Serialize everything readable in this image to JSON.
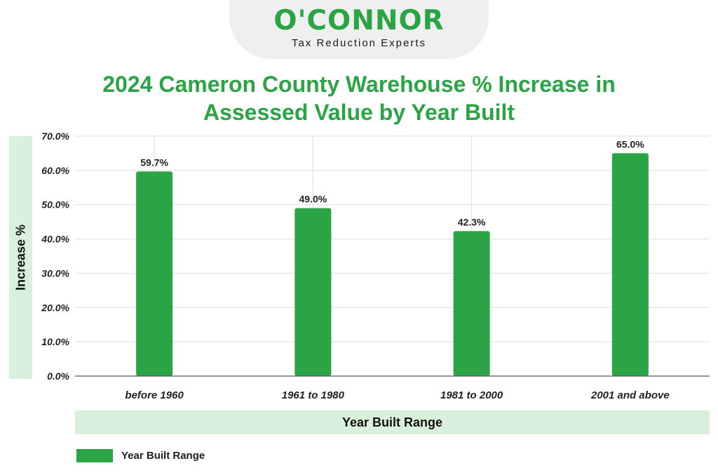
{
  "brand": {
    "name": "O'CONNOR",
    "tagline": "Tax Reduction Experts",
    "color": "#2aa444"
  },
  "colors": {
    "bar": "#2aa444",
    "band": "#d9f0dc",
    "grid": "#dddddd",
    "axis": "#555555"
  },
  "chart_data": {
    "type": "bar",
    "title": "2024 Cameron County Warehouse % Increase in Assessed Value by Year Built",
    "xlabel": "Year Built Range",
    "ylabel": "Increase %",
    "categories": [
      "before 1960",
      "1961 to 1980",
      "1981 to 2000",
      "2001 and above"
    ],
    "series": [
      {
        "name": "Year Built Range",
        "values": [
          59.7,
          49.0,
          42.3,
          65.0
        ]
      }
    ],
    "data_labels": [
      "59.7%",
      "49.0%",
      "42.3%",
      "65.0%"
    ],
    "ylim": [
      0,
      70
    ],
    "yticks": [
      0,
      10,
      20,
      30,
      40,
      50,
      60,
      70
    ],
    "ytick_labels": [
      "0.0%",
      "10.0%",
      "20.0%",
      "30.0%",
      "40.0%",
      "50.0%",
      "60.0%",
      "70.0%"
    ],
    "grid": true,
    "legend": "bottom-left"
  }
}
